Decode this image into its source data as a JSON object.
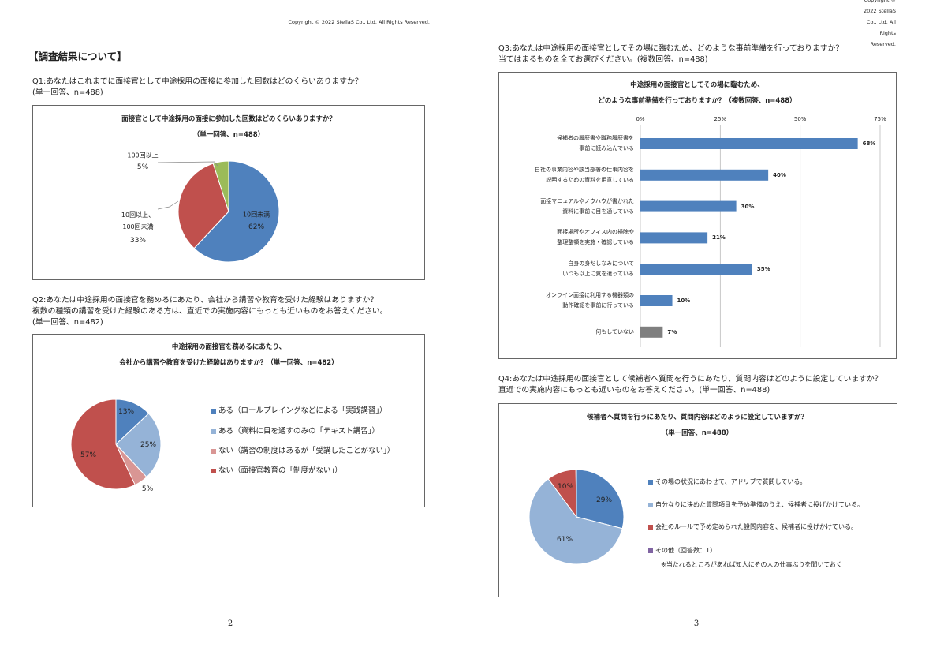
{
  "copyright": "Copyright © 2022 StellaS Co., Ltd. All Rights Reserved.",
  "heading": "【調査結果について】",
  "page_numbers": [
    "2",
    "3"
  ],
  "questions": [
    [
      "Q1:あなたはこれまでに面接官として中途採用の面接に参加した回数はどのくらいありますか？",
      "(単一回答、n=488)"
    ],
    [
      "Q2:あなたは中途採用の面接官を務めるにあたり、会社から講習や教育を受けた経験はありますか？",
      "複数の種類の講習を受けた経験のある方は、直近での実施内容にもっとも近いものをお答えください。",
      "(単一回答、n=482)"
    ],
    [
      "Q3:あなたは中途採用の面接官としてその場に臨むため、どのような事前準備を行っておりますか？",
      "当てはまるものを全てお選びください。(複数回答、n=488)"
    ],
    [
      "Q4:あなたは中途採用の面接官として候補者へ質問を行うにあたり、質問内容はどのように設定していますか？",
      "直近での実施内容にもっとも近いものをお答えください。(単一回答、n=488)"
    ]
  ],
  "chart_data": [
    {
      "type": "pie",
      "title": [
        "面接官として中途採用の面接に参加した回数はどのくらいありますか？",
        "（単一回答、n=488）"
      ],
      "categories": [
        "10回未満",
        "10回以上、\n100回未満",
        "100回以上"
      ],
      "values": [
        62,
        33,
        5
      ],
      "value_labels": [
        "62%",
        "33%",
        "5%"
      ],
      "colors": [
        "#4f81bd",
        "#c0504d",
        "#9bbb59"
      ],
      "legend": false
    },
    {
      "type": "pie",
      "title": [
        "中途採用の面接官を務めるにあたり、",
        "会社から講習や教育を受けた経験はありますか？（単一回答、n=482）"
      ],
      "categories": [
        "ある（ロールプレイングなどによる「実践講習」）",
        "ある（資料に目を通すのみの「テキスト講習」）",
        "ない（講習の制度はあるが「受講したことがない」）",
        "ない（面接官教育の「制度がない」）"
      ],
      "values": [
        13,
        25,
        5,
        57
      ],
      "value_labels": [
        "13%",
        "25%",
        "5%",
        "57%"
      ],
      "colors": [
        "#4f81bd",
        "#95b3d7",
        "#d99694",
        "#c0504d"
      ],
      "legend": true
    },
    {
      "type": "hbar",
      "title": [
        "中途採用の面接官としてその場に臨むため、",
        "どのような事前準備を行っておりますか？（複数回答、n=488）"
      ],
      "categories": [
        "候補者の履歴書や職務履歴書を\n事前に読み込んでいる",
        "自社の事業内容や該当部署の仕事内容を\n説明するための資料を用意している",
        "面接マニュアルやノウハウが書かれた\n資料に事前に目を通している",
        "面接場所やオフィス内の掃除や\n整理整頓を実施・確認している",
        "自身の身だしなみについて\nいつも以上に気を遣っている",
        "オンライン面接に利用する機器類の\n動作確認を事前に行っている",
        "何もしていない"
      ],
      "values": [
        68,
        40,
        30,
        21,
        35,
        10,
        7
      ],
      "value_labels": [
        "68%",
        "40%",
        "30%",
        "21%",
        "35%",
        "10%",
        "7%"
      ],
      "colors": [
        "#4f81bd",
        "#4f81bd",
        "#4f81bd",
        "#4f81bd",
        "#4f81bd",
        "#4f81bd",
        "#7f7f7f"
      ],
      "xlim": [
        0,
        75
      ],
      "xticks": [
        {
          "value": 0,
          "label": "0%"
        },
        {
          "value": 25,
          "label": "25%"
        },
        {
          "value": 50,
          "label": "50%"
        },
        {
          "value": 75,
          "label": "75%"
        }
      ],
      "grid": true
    },
    {
      "type": "pie",
      "title": [
        "候補者へ質問を行うにあたり、質問内容はどのように設定していますか？",
        "（単一回答、n=488）"
      ],
      "categories": [
        "その場の状況にあわせて、アドリブで質問している。",
        "自分なりに決めた質問項目を予め準備のうえ、候補者に投げかけている。",
        "会社のルールで予め定められた設問内容を、候補者に投げかけている。",
        "その他（回答数：1）"
      ],
      "values": [
        29,
        61,
        10,
        0.2
      ],
      "value_labels": [
        "29%",
        "61%",
        "10%",
        null
      ],
      "colors": [
        "#4f81bd",
        "#95b3d7",
        "#c0504d",
        "#8064a2"
      ],
      "legend": true,
      "note": "※当たれるところがあれば知人にその人の仕事ぶりを聞いておく"
    }
  ]
}
